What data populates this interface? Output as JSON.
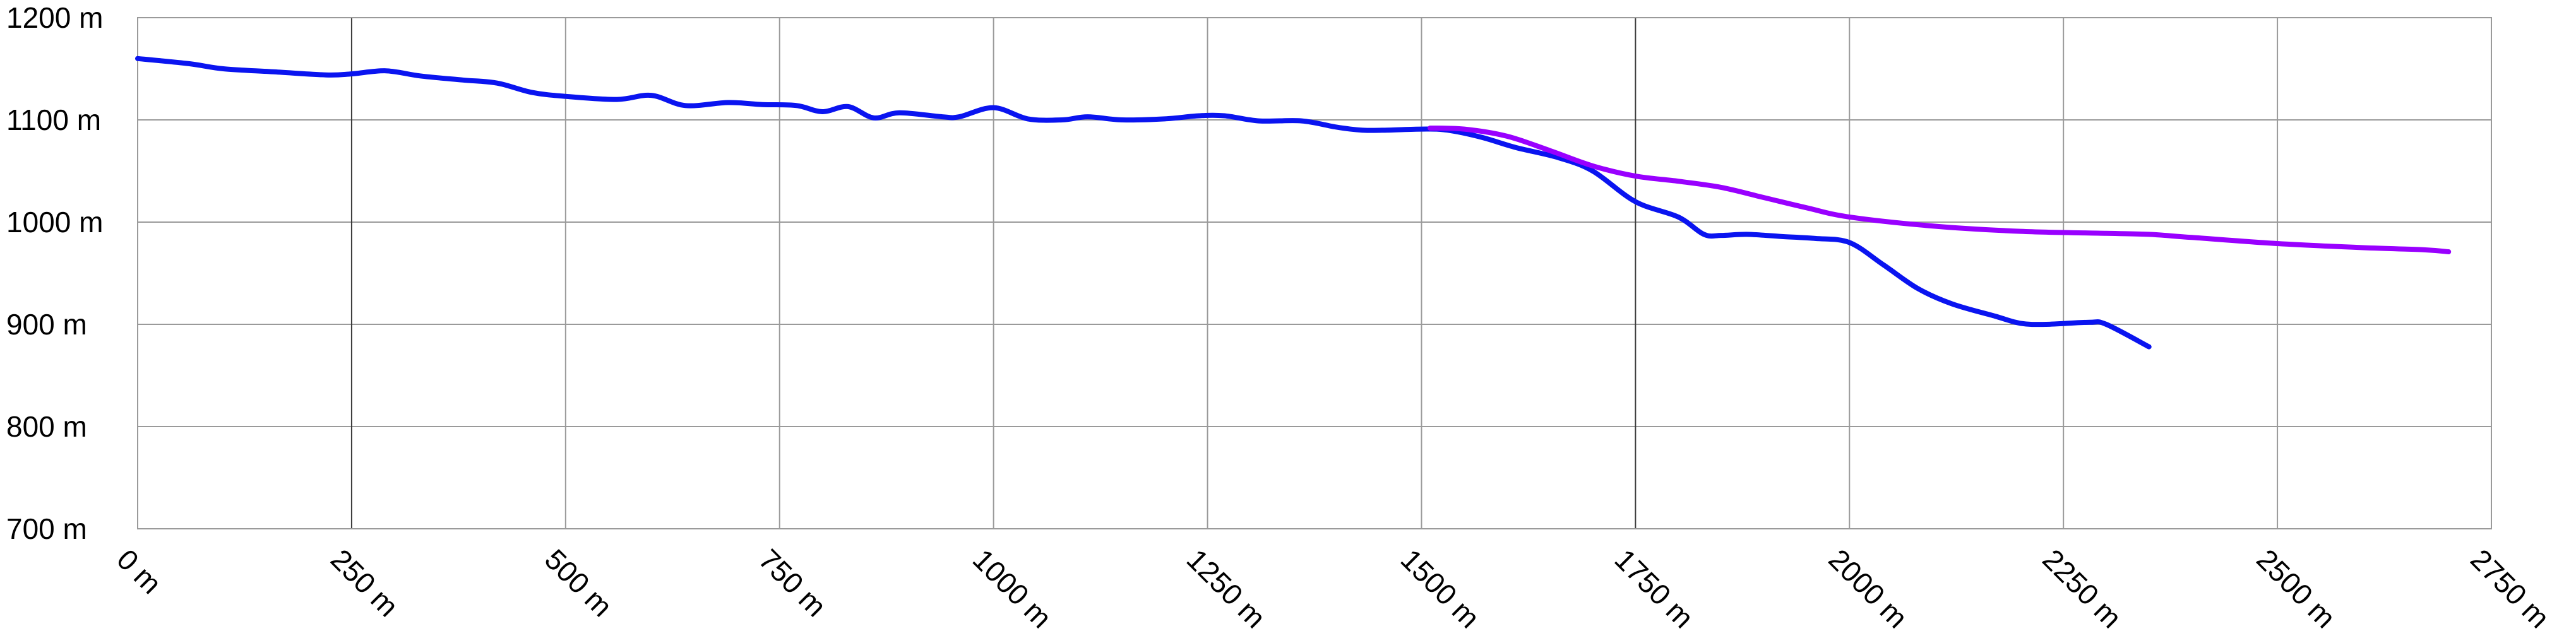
{
  "chart_data": {
    "type": "line",
    "title": "",
    "xlabel": "",
    "ylabel": "",
    "xlim": [
      0,
      2750
    ],
    "ylim": [
      700,
      1200
    ],
    "x_ticks": [
      0,
      250,
      500,
      750,
      1000,
      1250,
      1500,
      1750,
      2000,
      2250,
      2500,
      2750
    ],
    "x_tick_labels": [
      "0 m",
      "250 m",
      "500 m",
      "750 m",
      "1000 m",
      "1250 m",
      "1500 m",
      "1750 m",
      "2000 m",
      "2250 m",
      "2500 m",
      "2750 m"
    ],
    "y_ticks": [
      700,
      800,
      900,
      1000,
      1100,
      1200
    ],
    "y_tick_labels": [
      "700 m",
      "800 m",
      "900 m",
      "1000 m",
      "1100 m",
      "1200 m"
    ],
    "major_vertical_gridlines": [
      250,
      1750
    ],
    "grid": true,
    "legend": "none",
    "series": [
      {
        "color": "#0a14f0",
        "x": [
          0,
          60,
          100,
          160,
          220,
          250,
          290,
          330,
          380,
          420,
          460,
          500,
          560,
          600,
          640,
          690,
          730,
          770,
          800,
          830,
          860,
          890,
          940,
          960,
          1000,
          1040,
          1080,
          1110,
          1150,
          1200,
          1240,
          1270,
          1310,
          1360,
          1400,
          1430,
          1460,
          1500,
          1530,
          1570,
          1610,
          1660,
          1700,
          1750,
          1800,
          1830,
          1850,
          1880,
          1920,
          1960,
          2000,
          2040,
          2080,
          2120,
          2170,
          2200,
          2230,
          2280,
          2300,
          2350
        ],
        "values": [
          1160,
          1155,
          1150,
          1147,
          1144,
          1145,
          1148,
          1143,
          1139,
          1136,
          1127,
          1123,
          1120,
          1124,
          1114,
          1117,
          1115,
          1114,
          1108,
          1113,
          1102,
          1107,
          1103,
          1103,
          1112,
          1101,
          1100,
          1103,
          1100,
          1101,
          1104,
          1104,
          1099,
          1099,
          1093,
          1090,
          1090,
          1091,
          1090,
          1083,
          1073,
          1063,
          1050,
          1020,
          1005,
          988,
          987,
          988,
          986,
          984,
          980,
          958,
          935,
          920,
          908,
          901,
          900,
          902,
          900,
          878
        ]
      },
      {
        "color": "#9900ff",
        "x": [
          1510,
          1550,
          1600,
          1650,
          1700,
          1750,
          1800,
          1850,
          1900,
          1950,
          2000,
          2100,
          2200,
          2300,
          2350,
          2400,
          2500,
          2600,
          2670,
          2700
        ],
        "values": [
          1092,
          1091,
          1084,
          1070,
          1055,
          1045,
          1040,
          1034,
          1024,
          1014,
          1005,
          996,
          991,
          989,
          988,
          985,
          979,
          975,
          973,
          971
        ]
      }
    ]
  }
}
